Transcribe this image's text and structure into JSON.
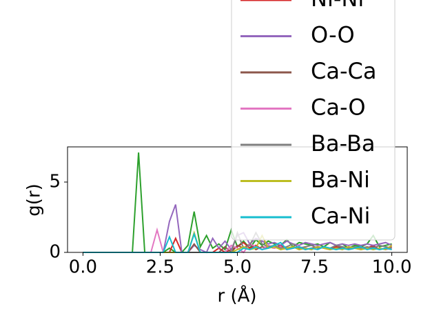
{
  "chart_data": {
    "type": "line",
    "xlabel": "r (Å)",
    "ylabel": "g(r)",
    "x": [
      0,
      0.2,
      0.4,
      0.6,
      0.8,
      1,
      1.2,
      1.4,
      1.6,
      1.8,
      2,
      2.2,
      2.4,
      2.6,
      2.8,
      3,
      3.2,
      3.4,
      3.6,
      3.8,
      4,
      4.2,
      4.4,
      4.6,
      4.8,
      5,
      5.2,
      5.4,
      5.6,
      5.8,
      6,
      6.2,
      6.4,
      6.6,
      6.8,
      7,
      7.2,
      7.4,
      7.6,
      7.8,
      8,
      8.2,
      8.4,
      8.6,
      8.8,
      9,
      9.2,
      9.4,
      9.6,
      9.8,
      10
    ],
    "xlim": [
      -0.5,
      10.5
    ],
    "ylim": [
      0,
      7.5
    ],
    "xticks": [
      {
        "value": 0,
        "label": "0.0"
      },
      {
        "value": 2.5,
        "label": "2.5"
      },
      {
        "value": 5,
        "label": "5.0"
      },
      {
        "value": 7.5,
        "label": "7.5"
      },
      {
        "value": 10,
        "label": "10.0"
      }
    ],
    "yticks": [
      0,
      5
    ],
    "series": [
      {
        "color": "#2ca02c",
        "values": [
          0,
          0,
          0,
          0,
          0,
          0,
          0,
          0,
          0,
          7.1,
          0,
          0,
          0,
          0,
          0.3,
          0,
          0,
          0.5,
          2.9,
          0.4,
          1.2,
          0.3,
          0.6,
          0.2,
          1.6,
          0.4,
          0.8,
          0.3,
          0.9,
          0.5,
          0.8,
          0.6,
          0.5,
          0.9,
          0.4,
          0.7,
          0.6,
          0.5,
          0.6,
          0.4,
          0.7,
          0.5,
          0.6,
          0.3,
          0.5,
          0.4,
          0.6,
          1.2,
          0.4,
          0.5,
          0.6
        ]
      },
      {
        "name": "Ni-Ni",
        "color": "#d62728",
        "values": [
          0,
          0,
          0,
          0,
          0,
          0,
          0,
          0,
          0,
          0,
          0,
          0,
          0,
          0,
          0,
          1.0,
          0,
          0,
          0,
          0,
          0,
          0,
          0.3,
          0,
          0.2,
          0.4,
          0.7,
          0.3,
          0.5,
          0.2,
          0.4,
          0.3,
          0.5,
          0.2,
          0.3,
          0.4,
          0.2,
          0.3,
          0.4,
          0.3,
          0.2,
          0.4,
          0.3,
          0.2,
          0.3,
          0.4,
          0.3,
          0.5,
          0.2,
          0.3,
          0.4
        ]
      },
      {
        "name": "O-O",
        "color": "#9467bd",
        "values": [
          0,
          0,
          0,
          0,
          0,
          0,
          0,
          0,
          0,
          0,
          0,
          0,
          0,
          0,
          2.2,
          3.4,
          0,
          0,
          0.5,
          0.2,
          0,
          1.0,
          0.3,
          0.8,
          0.2,
          1.2,
          1.4,
          0.6,
          1.0,
          0.8,
          0.6,
          0.7,
          0.5,
          0.8,
          0.6,
          0.5,
          0.7,
          0.6,
          0.5,
          0.6,
          0.7,
          0.5,
          0.6,
          0.5,
          0.6,
          0.5,
          0.6,
          0.5,
          0.6,
          0.7,
          0.5
        ]
      },
      {
        "name": "Ca-Ca",
        "color": "#8c564b",
        "values": [
          0,
          0,
          0,
          0,
          0,
          0,
          0,
          0,
          0,
          0,
          0,
          0,
          0,
          0,
          0,
          0,
          0,
          0,
          0.6,
          0,
          0,
          0,
          0,
          0.4,
          0,
          0.5,
          0.3,
          0.6,
          0.2,
          0.4,
          0.3,
          0.5,
          0.2,
          0.3,
          0.4,
          0.2,
          0.3,
          0.2,
          0.4,
          0.3,
          0.2,
          0.3,
          0.4,
          0.2,
          0.3,
          0.2,
          0.3,
          0.4,
          0.2,
          0.3,
          0.2
        ]
      },
      {
        "name": "Ca-O",
        "color": "#e377c2",
        "values": [
          0,
          0,
          0,
          0,
          0,
          0,
          0,
          0,
          0,
          0,
          0,
          0,
          1.6,
          0,
          0,
          0,
          0,
          0,
          0,
          0,
          0,
          0,
          0,
          0,
          0.5,
          0.3,
          0,
          0.6,
          0.4,
          0.2,
          0.5,
          0.3,
          0.4,
          0.2,
          0.3,
          0.4,
          0.3,
          0.2,
          0.4,
          0.3,
          0.2,
          0.3,
          0.2,
          0.4,
          0.3,
          0.2,
          0.3,
          0.2,
          0.3,
          0.2,
          0.3
        ]
      },
      {
        "name": "Ba-Ba",
        "color": "#7f7f7f",
        "values": [
          0,
          0,
          0,
          0,
          0,
          0,
          0,
          0,
          0,
          0,
          0,
          0,
          0,
          0,
          0,
          0,
          0,
          0,
          0,
          0,
          0,
          0,
          0,
          0,
          0,
          1.4,
          0.3,
          0.5,
          1.4,
          0.6,
          0.4,
          0.5,
          0.3,
          0.4,
          0.6,
          0.3,
          0.4,
          0.5,
          0.3,
          0.4,
          0.3,
          0.5,
          0.4,
          0.3,
          0.4,
          0.3,
          0.4,
          0.3,
          0.5,
          0.4,
          0.3
        ]
      },
      {
        "name": "Ba-Ni",
        "color": "#bcbd22",
        "values": [
          0,
          0,
          0,
          0,
          0,
          0,
          0,
          0,
          0,
          0,
          0,
          0,
          0,
          0,
          0,
          0,
          0,
          0,
          1.4,
          0,
          0,
          0,
          0,
          0,
          0,
          0.2,
          0.4,
          0.2,
          0.3,
          1.2,
          0.3,
          0.4,
          0.2,
          0.3,
          0.4,
          0.2,
          0.3,
          0.2,
          0.4,
          0.3,
          0.2,
          0.3,
          0.2,
          0.4,
          0.3,
          0.2,
          0.3,
          0.2,
          0.3,
          0.2,
          0.5
        ]
      },
      {
        "name": "Ca-Ni",
        "color": "#17becf",
        "values": [
          0,
          0,
          0,
          0,
          0,
          0,
          0,
          0,
          0,
          0,
          0,
          0,
          0,
          0,
          1.1,
          0,
          0,
          0,
          1.3,
          0,
          0,
          0,
          0,
          0,
          0,
          0,
          0.3,
          0.2,
          0.4,
          0.2,
          0.3,
          0.5,
          0.7,
          0.2,
          0.3,
          0.4,
          0.2,
          0.3,
          0.2,
          0.4,
          0.3,
          0.2,
          0.3,
          0.2,
          0.3,
          0.4,
          0.2,
          0.3,
          0.2,
          0.3,
          0.2
        ]
      }
    ]
  }
}
